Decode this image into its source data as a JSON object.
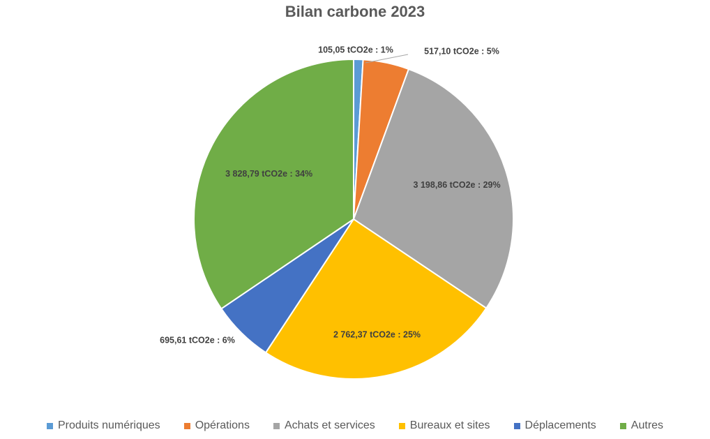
{
  "chart_data": {
    "type": "pie",
    "title": "Bilan carbone 2023",
    "unit": "tCO2e",
    "legend_position": "bottom",
    "slices": [
      {
        "name": "Produits numériques",
        "value": 105.05,
        "percent": 1,
        "label": "105,05 tCO2e : 1%",
        "color": "#5B9BD5"
      },
      {
        "name": "Opérations",
        "value": 517.1,
        "percent": 5,
        "label": "517,10 tCO2e : 5%",
        "color": "#ED7D31"
      },
      {
        "name": "Achats et services",
        "value": 3198.86,
        "percent": 29,
        "label": "3 198,86 tCO2e : 29%",
        "color": "#A5A5A5"
      },
      {
        "name": "Bureaux et sites",
        "value": 2762.37,
        "percent": 25,
        "label": "2 762,37 tCO2e : 25%",
        "color": "#FFC000"
      },
      {
        "name": "Déplacements",
        "value": 695.61,
        "percent": 6,
        "label": "695,61 tCO2e : 6%",
        "color": "#4472C4"
      },
      {
        "name": "Autres",
        "value": 3828.79,
        "percent": 34,
        "label": "3 828,79 tCO2e : 34%",
        "color": "#70AD47"
      }
    ]
  }
}
